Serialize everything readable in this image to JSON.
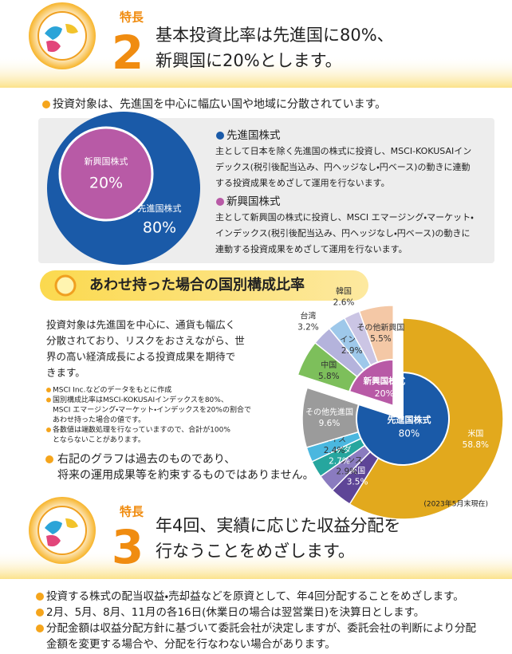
{
  "feature2": {
    "label": "特長",
    "number": "2",
    "title_lines": [
      "基本投資比率は先進国に80%、",
      "新興国に20%とします。"
    ]
  },
  "lead": "投資対象は、先進国を中心に幅広い国や地域に分散されています。",
  "box": {
    "items": [
      {
        "heading": "先進国株式",
        "text_lines": [
          "主として日本を除く先進国の株式に投資し、MSCI-KOKUSAIイン",
          "デックス(税引後配当込み、円ヘッジなし・円ベース)の動きに連動",
          "する投資成果をめざして運用を行ないます。"
        ]
      },
      {
        "heading": "新興国株式",
        "text_lines": [
          "主として新興国の株式に投資し、MSCI エマージング・マーケット・",
          "インデックス(税引後配当込み、円ヘッジなし・円ベース)の動きに",
          "連動する投資成果をめざして運用を行ないます。"
        ]
      }
    ]
  },
  "banner": "あわせ持った場合の国別構成比率",
  "description_lines": [
    "投資対象は先進国を中心に、通貨も幅広く",
    "分散されており、リスクをおさえながら、世",
    "界の高い経済成長による投資成果を期待で",
    "きます。"
  ],
  "notes": [
    [
      "MSCI Inc.などのデータをもとに作成"
    ],
    [
      "国別構成比率はMSCI-KOKUSAIインデックスを80%、",
      "MSCI エマージング・マーケット・インデックスを20%の割合で",
      "あわせ持った場合の値です。"
    ],
    [
      "各数値は端数処理を行なっていますので、合計が100%",
      "とならないことがあります。"
    ]
  ],
  "disclaimer_lines": [
    "右記のグラフは過去のものであり、",
    "将来の運用成果等を約束するものではありません。"
  ],
  "chart_data": [
    {
      "type": "pie",
      "categories": [
        "新興国株式",
        "先進国株式"
      ],
      "values": [
        20,
        80
      ],
      "value_labels": [
        "20%",
        "80%"
      ],
      "colors": [
        "#b85aa6",
        "#1a5aa8"
      ]
    },
    {
      "type": "donut",
      "categories": [
        "米国",
        "英国",
        "フランス",
        "カナダ",
        "スイス",
        "その他先進国",
        "中国",
        "台湾",
        "インド",
        "韓国",
        "その他新興国"
      ],
      "values": [
        58.8,
        3.5,
        2.9,
        2.7,
        2.4,
        9.6,
        5.8,
        3.2,
        2.9,
        2.6,
        5.5
      ],
      "value_labels": [
        "58.8%",
        "3.5%",
        "2.9%",
        "2.7%",
        "2.4%",
        "9.6%",
        "5.8%",
        "3.2%",
        "2.9%",
        "2.6%",
        "5.5%"
      ],
      "colors": [
        "#e2a91d",
        "#5e4597",
        "#8a7bbf",
        "#26a69e",
        "#4bb7df",
        "#9b9b9b",
        "#7dbf5b",
        "#b4b3dc",
        "#9ec8ea",
        "#cbc5e4",
        "#f4c8a6"
      ],
      "groups": [
        {
          "name": "先進国株式",
          "value": 80,
          "value_label": "80%",
          "color": "#1a5aa8"
        },
        {
          "name": "新興国株式",
          "value": 20,
          "value_label": "20%",
          "color": "#b85aa6"
        }
      ],
      "note": "(2023年5月末現在)"
    }
  ],
  "feature3": {
    "label": "特長",
    "number": "3",
    "title_lines": [
      "年4回、実績に応じた収益分配を",
      "行なうことをめざします。"
    ]
  },
  "bullets": [
    [
      "投資する株式の配当収益・売却益などを原資として、年4回分配することをめざします。"
    ],
    [
      "2月、5月、8月、11月の各16日(休業日の場合は翌営業日)を決算日とします。"
    ],
    [
      "分配金額は収益分配方針に基づいて委託会社が決定しますが、委託会社の判断により分配",
      "金額を変更する場合や、分配を行なわない場合があります。"
    ]
  ]
}
